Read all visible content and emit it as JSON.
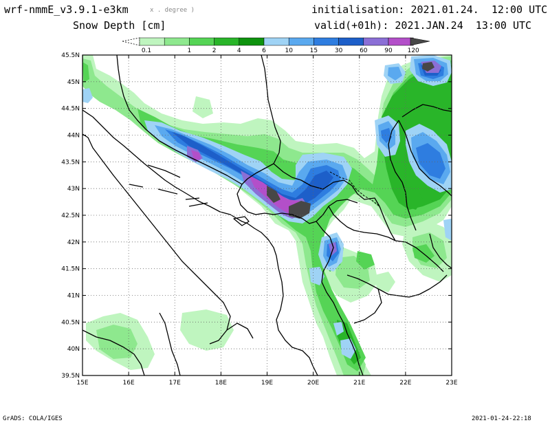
{
  "header": {
    "model_title": "wrf-nmmE_v3.9.1-e3km",
    "model_units_note": "x . degree )",
    "variable_title": "Snow Depth [cm]",
    "initialisation": "initialisation: 2021.01.24.  12:00 UTC",
    "valid": "valid(+01h): 2021.JAN.24  13:00 UTC"
  },
  "colorbar": {
    "labels": [
      "0.1",
      "1",
      "2",
      "4",
      "6",
      "10",
      "15",
      "30",
      "60",
      "90",
      "120"
    ],
    "colors": [
      "#bff5bf",
      "#8ee88e",
      "#55d455",
      "#29b529",
      "#0e930e",
      "#9fd3f5",
      "#5aa9ef",
      "#2e7de0",
      "#1d5fc9",
      "#8b6fd6",
      "#b34fc9",
      "#474747"
    ]
  },
  "map": {
    "lon_labels": [
      "15E",
      "16E",
      "17E",
      "18E",
      "19E",
      "20E",
      "21E",
      "22E",
      "23E"
    ],
    "lat_labels": [
      "45.5N",
      "45N",
      "44.5N",
      "44N",
      "43.5N",
      "43N",
      "42.5N",
      "42N",
      "41.5N",
      "41N",
      "40.5N",
      "40N",
      "39.5N"
    ]
  },
  "footer": {
    "left": "GrADS: COLA/IGES",
    "right": "2021-01-24-22:18"
  }
}
